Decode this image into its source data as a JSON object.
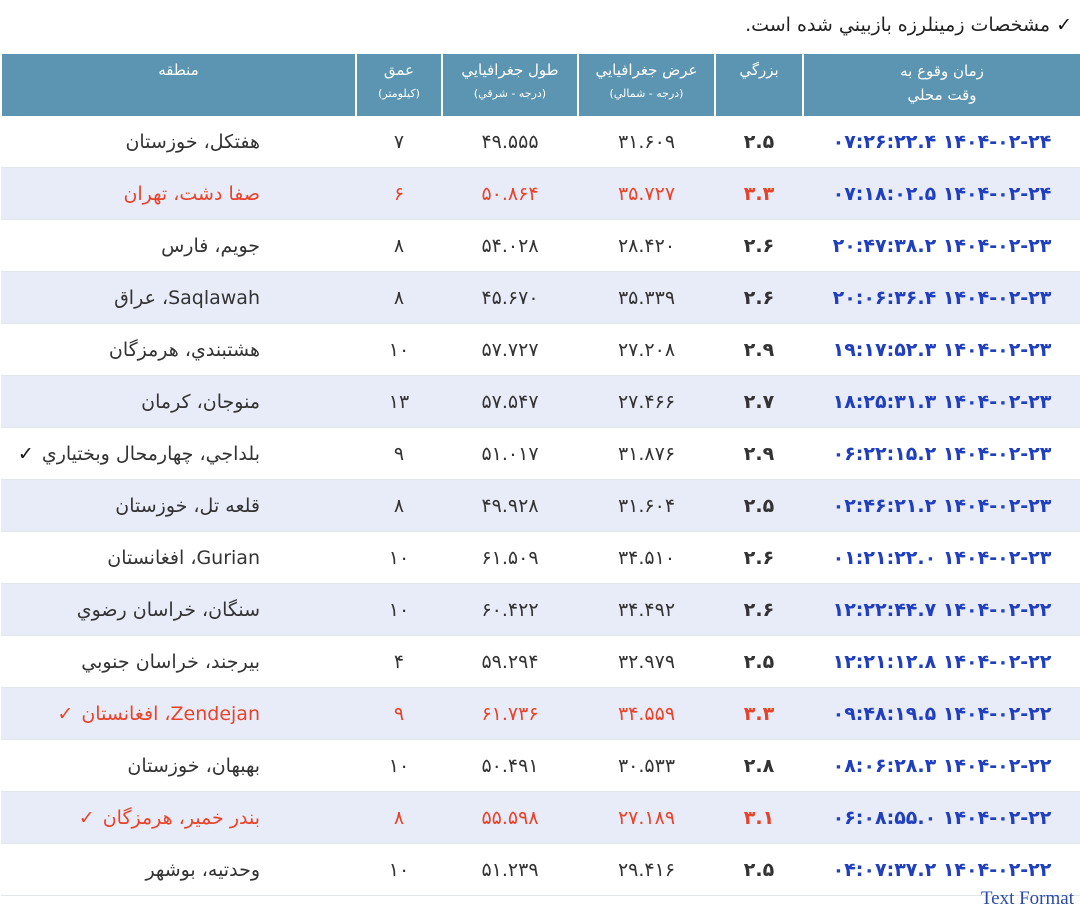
{
  "note": {
    "check": "✓",
    "text": "مشخصات زمينلرزه بازبيني شده است."
  },
  "headers": {
    "time": {
      "line1": "زمان وقوع به",
      "line2": "وقت محلي"
    },
    "mag": {
      "line1": "بزرگي"
    },
    "lat": {
      "line1": "عرض جغرافيايي",
      "line2": "(درجه - شمالي)"
    },
    "lon": {
      "line1": "طول جغرافيايي",
      "line2": "(درجه - شرقي)"
    },
    "depth": {
      "line1": "عمق",
      "line2": "(كيلومتر)"
    },
    "region": {
      "line1": "منطقه"
    }
  },
  "rows": [
    {
      "time": "۱۴۰۴-۰۲-۲۴ ۰۷:۲۶:۲۲.۴",
      "mag": "۲.۵",
      "lat": "۳۱.۶۰۹",
      "lon": "۴۹.۵۵۵",
      "depth": "۷",
      "region": "هفتكل، خوزستان",
      "check": "",
      "red": false
    },
    {
      "time": "۱۴۰۴-۰۲-۲۴ ۰۷:۱۸:۰۲.۵",
      "mag": "۳.۳",
      "lat": "۳۵.۷۲۷",
      "lon": "۵۰.۸۶۴",
      "depth": "۶",
      "region": "صفا دشت، تهران",
      "check": "",
      "red": true
    },
    {
      "time": "۱۴۰۴-۰۲-۲۳ ۲۰:۴۷:۳۸.۲",
      "mag": "۲.۶",
      "lat": "۲۸.۴۲۰",
      "lon": "۵۴.۰۲۸",
      "depth": "۸",
      "region": "جويم، فارس",
      "check": "",
      "red": false
    },
    {
      "time": "۱۴۰۴-۰۲-۲۳ ۲۰:۰۶:۳۶.۴",
      "mag": "۲.۶",
      "lat": "۳۵.۳۳۹",
      "lon": "۴۵.۶۷۰",
      "depth": "۸",
      "region": "Saqlawah، عراق",
      "check": "",
      "red": false
    },
    {
      "time": "۱۴۰۴-۰۲-۲۳ ۱۹:۱۷:۵۲.۳",
      "mag": "۲.۹",
      "lat": "۲۷.۲۰۸",
      "lon": "۵۷.۷۲۷",
      "depth": "۱۰",
      "region": "هشتبندي، هرمزگان",
      "check": "",
      "red": false
    },
    {
      "time": "۱۴۰۴-۰۲-۲۳ ۱۸:۲۵:۳۱.۳",
      "mag": "۲.۷",
      "lat": "۲۷.۴۶۶",
      "lon": "۵۷.۵۴۷",
      "depth": "۱۳",
      "region": "منوجان، كرمان",
      "check": "",
      "red": false
    },
    {
      "time": "۱۴۰۴-۰۲-۲۳ ۰۶:۲۲:۱۵.۲",
      "mag": "۲.۹",
      "lat": "۳۱.۸۷۶",
      "lon": "۵۱.۰۱۷",
      "depth": "۹",
      "region": "بلداجي، چهارمحال وبختياري",
      "check": "✓",
      "red": false
    },
    {
      "time": "۱۴۰۴-۰۲-۲۳ ۰۲:۴۶:۲۱.۲",
      "mag": "۲.۵",
      "lat": "۳۱.۶۰۴",
      "lon": "۴۹.۹۲۸",
      "depth": "۸",
      "region": "قلعه تل، خوزستان",
      "check": "",
      "red": false
    },
    {
      "time": "۱۴۰۴-۰۲-۲۳ ۰۱:۲۱:۲۲.۰",
      "mag": "۲.۶",
      "lat": "۳۴.۵۱۰",
      "lon": "۶۱.۵۰۹",
      "depth": "۱۰",
      "region": "Gurian، افغانستان",
      "check": "",
      "red": false
    },
    {
      "time": "۱۴۰۴-۰۲-۲۲ ۱۲:۲۲:۴۴.۷",
      "mag": "۲.۶",
      "lat": "۳۴.۴۹۲",
      "lon": "۶۰.۴۲۲",
      "depth": "۱۰",
      "region": "سنگان، خراسان رضوي",
      "check": "",
      "red": false
    },
    {
      "time": "۱۴۰۴-۰۲-۲۲ ۱۲:۲۱:۱۲.۸",
      "mag": "۲.۵",
      "lat": "۳۲.۹۷۹",
      "lon": "۵۹.۲۹۴",
      "depth": "۴",
      "region": "بيرجند، خراسان جنوبي",
      "check": "",
      "red": false
    },
    {
      "time": "۱۴۰۴-۰۲-۲۲ ۰۹:۴۸:۱۹.۵",
      "mag": "۳.۳",
      "lat": "۳۴.۵۵۹",
      "lon": "۶۱.۷۳۶",
      "depth": "۹",
      "region": "Zendejan، افغانستان",
      "check": "✓",
      "red": true
    },
    {
      "time": "۱۴۰۴-۰۲-۲۲ ۰۸:۰۶:۲۸.۳",
      "mag": "۲.۸",
      "lat": "۳۰.۵۳۳",
      "lon": "۵۰.۴۹۱",
      "depth": "۱۰",
      "region": "بهبهان، خوزستان",
      "check": "",
      "red": false
    },
    {
      "time": "۱۴۰۴-۰۲-۲۲ ۰۶:۰۸:۵۵.۰",
      "mag": "۳.۱",
      "lat": "۲۷.۱۸۹",
      "lon": "۵۵.۵۹۸",
      "depth": "۸",
      "region": "بندر خمير، هرمزگان",
      "check": "✓",
      "red": true
    },
    {
      "time": "۱۴۰۴-۰۲-۲۲ ۰۴:۰۷:۳۷.۲",
      "mag": "۲.۵",
      "lat": "۲۹.۴۱۶",
      "lon": "۵۱.۲۳۹",
      "depth": "۱۰",
      "region": "وحدتيه، بوشهر",
      "check": "",
      "red": false
    }
  ],
  "footer": {
    "text_format": "Text Format"
  }
}
